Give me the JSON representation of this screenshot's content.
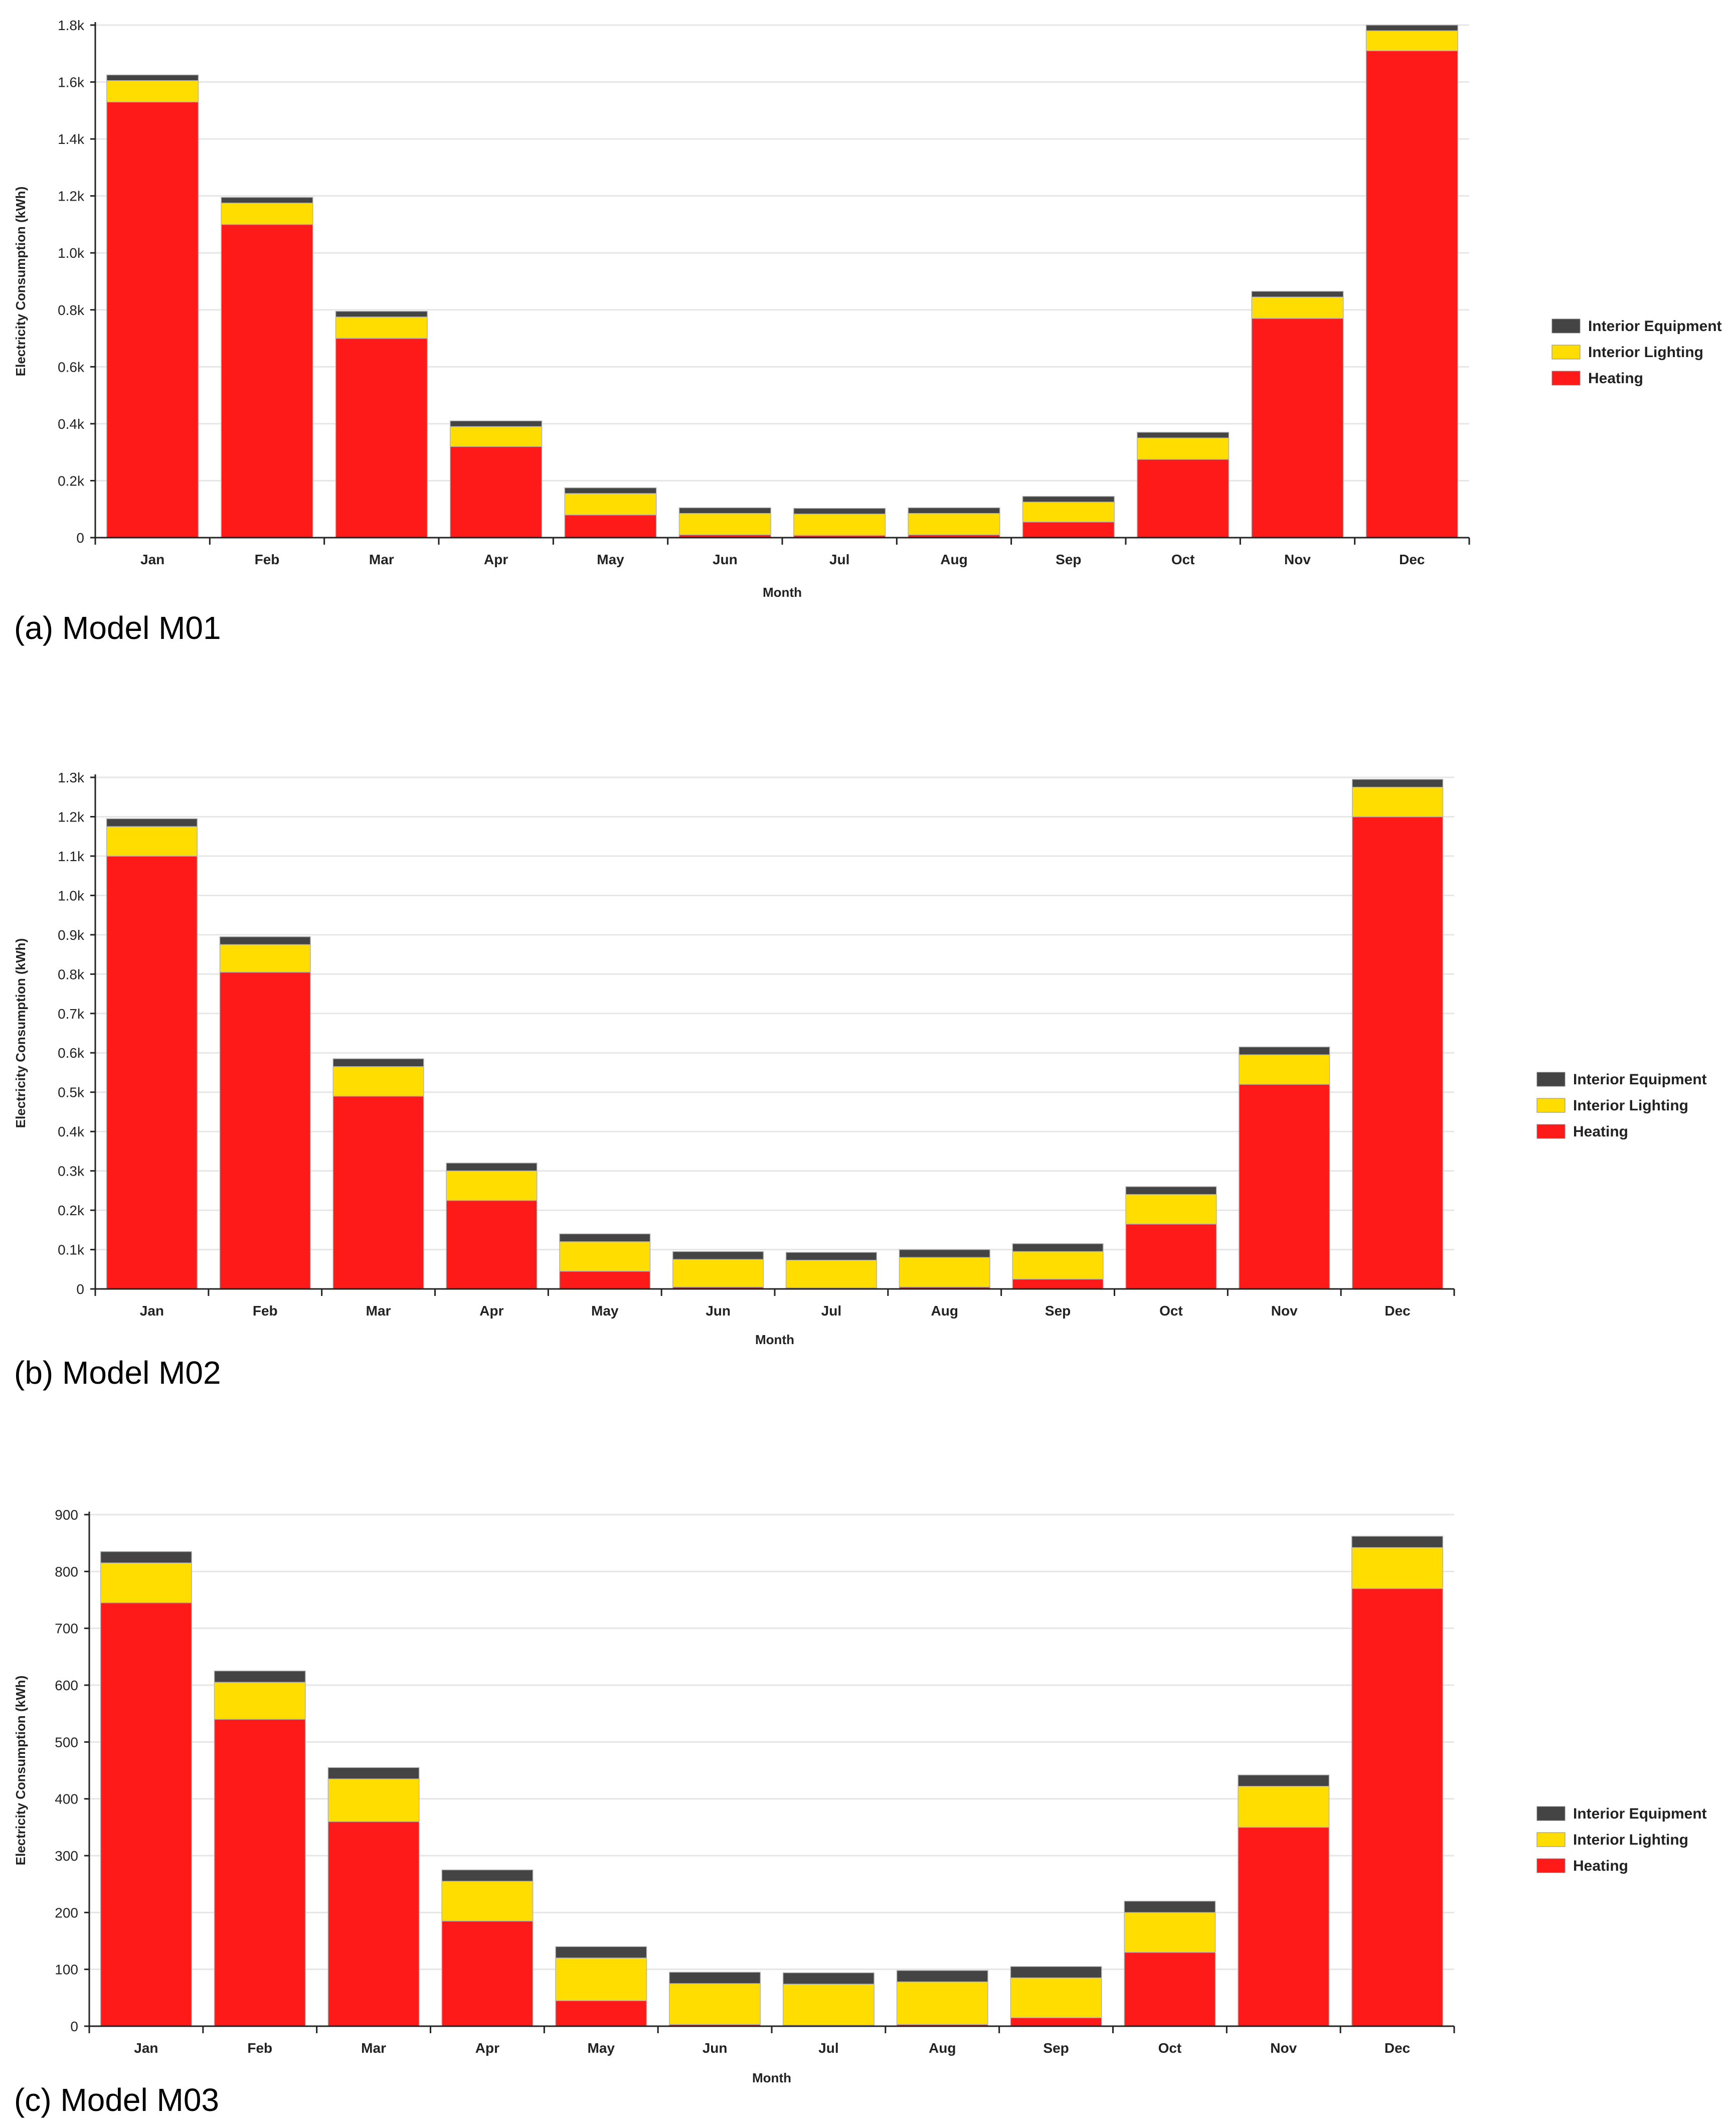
{
  "captions": [
    "(a) Model M01",
    "(b) Model M02",
    "(c) Model M03"
  ],
  "colors": {
    "equipment": "#444444",
    "lighting": "#ffdd00",
    "heating": "#ff1a1a",
    "grid": "#e6e6e6",
    "axis": "#222222"
  },
  "chart_data": [
    {
      "type": "bar",
      "stacked": true,
      "title": "",
      "xlabel": "Month",
      "ylabel": "Electricity Consumption (kWh)",
      "ylim": [
        0,
        1800
      ],
      "yticks": [
        0,
        200,
        400,
        600,
        800,
        1000,
        1200,
        1400,
        1600,
        1800
      ],
      "ytick_labels": [
        "0",
        "0.2k",
        "0.4k",
        "0.6k",
        "0.8k",
        "1.0k",
        "1.2k",
        "1.4k",
        "1.6k",
        "1.8k"
      ],
      "categories": [
        "Jan",
        "Feb",
        "Mar",
        "Apr",
        "May",
        "Jun",
        "Jul",
        "Aug",
        "Sep",
        "Oct",
        "Nov",
        "Dec"
      ],
      "legend": [
        "Interior Equipment",
        "Interior Lighting",
        "Heating"
      ],
      "legend_position": "right",
      "series": [
        {
          "name": "Heating",
          "values": [
            1530,
            1100,
            700,
            320,
            80,
            10,
            8,
            10,
            55,
            275,
            770,
            1710
          ]
        },
        {
          "name": "Interior Lighting",
          "values": [
            75,
            75,
            75,
            70,
            75,
            75,
            75,
            75,
            70,
            75,
            75,
            70
          ]
        },
        {
          "name": "Interior Equipment",
          "values": [
            20,
            20,
            20,
            20,
            20,
            20,
            20,
            20,
            20,
            20,
            20,
            20
          ]
        }
      ]
    },
    {
      "type": "bar",
      "stacked": true,
      "title": "",
      "xlabel": "Month",
      "ylabel": "Electricity Consumption (kWh)",
      "ylim": [
        0,
        1300
      ],
      "yticks": [
        0,
        100,
        200,
        300,
        400,
        500,
        600,
        700,
        800,
        900,
        1000,
        1100,
        1200,
        1300
      ],
      "ytick_labels": [
        "0",
        "0.1k",
        "0.2k",
        "0.3k",
        "0.4k",
        "0.5k",
        "0.6k",
        "0.7k",
        "0.8k",
        "0.9k",
        "1.0k",
        "1.1k",
        "1.2k",
        "1.3k"
      ],
      "categories": [
        "Jan",
        "Feb",
        "Mar",
        "Apr",
        "May",
        "Jun",
        "Jul",
        "Aug",
        "Sep",
        "Oct",
        "Nov",
        "Dec"
      ],
      "legend": [
        "Interior Equipment",
        "Interior Lighting",
        "Heating"
      ],
      "legend_position": "right",
      "series": [
        {
          "name": "Heating",
          "values": [
            1100,
            805,
            490,
            225,
            45,
            5,
            3,
            5,
            25,
            165,
            520,
            1200
          ]
        },
        {
          "name": "Interior Lighting",
          "values": [
            75,
            70,
            75,
            75,
            75,
            70,
            70,
            75,
            70,
            75,
            75,
            75
          ]
        },
        {
          "name": "Interior Equipment",
          "values": [
            20,
            20,
            20,
            20,
            20,
            20,
            20,
            20,
            20,
            20,
            20,
            20
          ]
        }
      ]
    },
    {
      "type": "bar",
      "stacked": true,
      "title": "",
      "xlabel": "Month",
      "ylabel": "Electricity Consumption (kWh)",
      "ylim": [
        0,
        900
      ],
      "yticks": [
        0,
        100,
        200,
        300,
        400,
        500,
        600,
        700,
        800,
        900
      ],
      "ytick_labels": [
        "0",
        "100",
        "200",
        "300",
        "400",
        "500",
        "600",
        "700",
        "800",
        "900"
      ],
      "categories": [
        "Jan",
        "Feb",
        "Mar",
        "Apr",
        "May",
        "Jun",
        "Jul",
        "Aug",
        "Sep",
        "Oct",
        "Nov",
        "Dec"
      ],
      "legend": [
        "Interior Equipment",
        "Interior Lighting",
        "Heating"
      ],
      "legend_position": "right",
      "series": [
        {
          "name": "Heating",
          "values": [
            745,
            540,
            360,
            185,
            45,
            3,
            2,
            3,
            15,
            130,
            350,
            770
          ]
        },
        {
          "name": "Interior Lighting",
          "values": [
            70,
            65,
            75,
            70,
            75,
            72,
            72,
            75,
            70,
            70,
            72,
            72
          ]
        },
        {
          "name": "Interior Equipment",
          "values": [
            20,
            20,
            20,
            20,
            20,
            20,
            20,
            20,
            20,
            20,
            20,
            20
          ]
        }
      ]
    }
  ]
}
